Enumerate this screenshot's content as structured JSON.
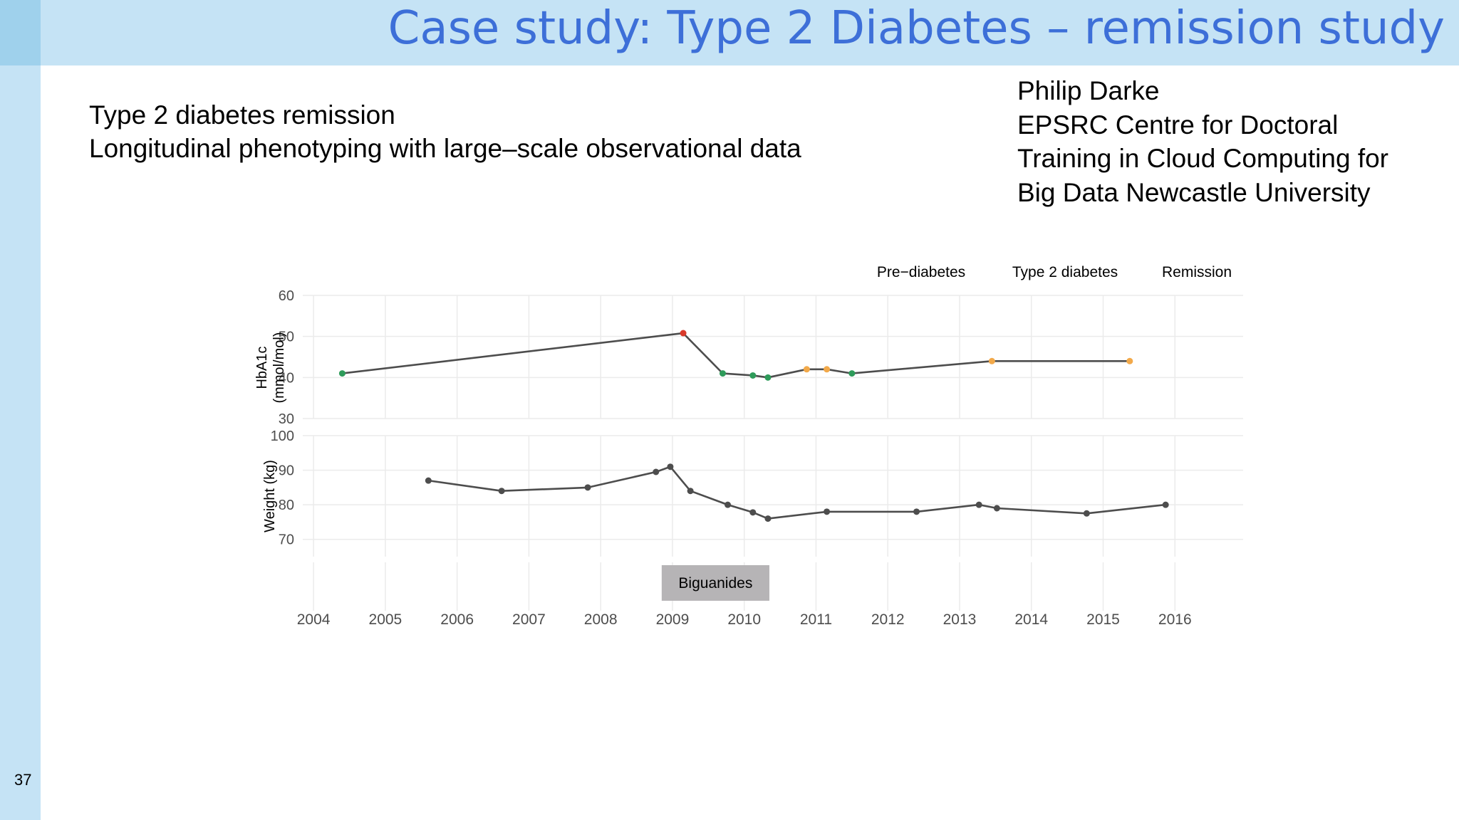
{
  "slide": {
    "title": "Case study: Type 2 Diabetes – remission study",
    "number": "37",
    "subtitle_lines": [
      "Type 2 diabetes remission",
      "Longitudinal phenotyping with large–scale observational data"
    ],
    "author_lines": [
      "Philip Darke",
      "EPSRC Centre for Doctoral",
      "Training in Cloud Computing for",
      "Big Data Newcastle University"
    ]
  },
  "colors": {
    "bar_background": "#c5e3f5",
    "corner_block": "#9fd1ec",
    "title_text": "#3d6fd8",
    "line": "#4d4d4d",
    "grid": "#ebebeb",
    "green": "#2e9b5a",
    "orange": "#f2a94a",
    "red": "#d93a2b",
    "drug_box": "#b6b4b6"
  },
  "chart_data": {
    "type": "line",
    "legend": {
      "position": "top-right",
      "entries": [
        "Pre−diabetes",
        "Type 2 diabetes",
        "Remission"
      ]
    },
    "x_axis": {
      "range": [
        2003.85,
        2016.95
      ],
      "ticks": [
        2004,
        2005,
        2006,
        2007,
        2008,
        2009,
        2010,
        2011,
        2012,
        2013,
        2014,
        2015,
        2016
      ]
    },
    "panels": [
      {
        "name": "hba1c",
        "ylabel": [
          "HbA1c",
          "(mmol/mol)"
        ],
        "ylim": [
          30,
          60
        ],
        "yticks": [
          30,
          40,
          50,
          60
        ],
        "points": [
          {
            "x": 2004.4,
            "y": 41,
            "status": "green"
          },
          {
            "x": 2009.15,
            "y": 50.8,
            "status": "red"
          },
          {
            "x": 2009.7,
            "y": 41,
            "status": "green"
          },
          {
            "x": 2010.12,
            "y": 40.5,
            "status": "green"
          },
          {
            "x": 2010.33,
            "y": 40,
            "status": "green"
          },
          {
            "x": 2010.87,
            "y": 42,
            "status": "orange"
          },
          {
            "x": 2011.15,
            "y": 42,
            "status": "orange"
          },
          {
            "x": 2011.5,
            "y": 41,
            "status": "green"
          },
          {
            "x": 2013.45,
            "y": 44,
            "status": "orange"
          },
          {
            "x": 2015.37,
            "y": 44,
            "status": "orange"
          }
        ]
      },
      {
        "name": "weight",
        "ylabel": [
          "Weight (kg)"
        ],
        "ylim": [
          65,
          100
        ],
        "yticks": [
          70,
          80,
          90,
          100
        ],
        "points": [
          {
            "x": 2005.6,
            "y": 87
          },
          {
            "x": 2006.62,
            "y": 84
          },
          {
            "x": 2007.82,
            "y": 85
          },
          {
            "x": 2008.77,
            "y": 89.5
          },
          {
            "x": 2008.97,
            "y": 91
          },
          {
            "x": 2009.25,
            "y": 84
          },
          {
            "x": 2009.77,
            "y": 80
          },
          {
            "x": 2010.12,
            "y": 77.8
          },
          {
            "x": 2010.33,
            "y": 76
          },
          {
            "x": 2011.15,
            "y": 78
          },
          {
            "x": 2012.4,
            "y": 78
          },
          {
            "x": 2013.27,
            "y": 80
          },
          {
            "x": 2013.52,
            "y": 79
          },
          {
            "x": 2014.77,
            "y": 77.5
          },
          {
            "x": 2015.87,
            "y": 80
          }
        ]
      }
    ],
    "medications": [
      {
        "label": "Biguanides",
        "start": 2008.85,
        "end": 2010.35
      }
    ]
  }
}
